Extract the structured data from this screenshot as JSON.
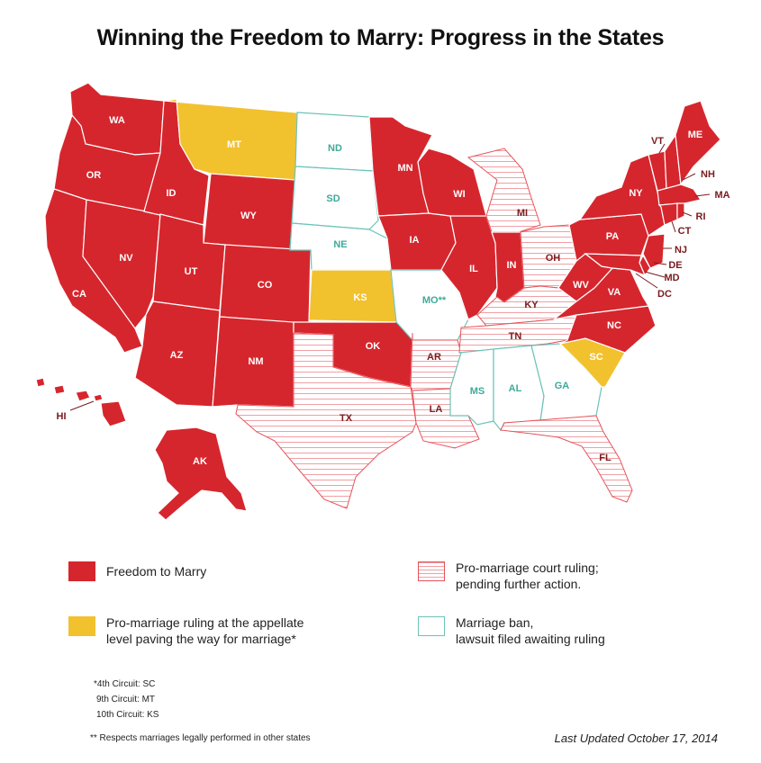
{
  "title": "Winning the Freedom to Marry: Progress in the States",
  "colors": {
    "freedom": "#d6262d",
    "appellate": "#f2c12e",
    "pending_stroke": "#e8525a",
    "ban_stroke": "#6cc3b8"
  },
  "states": {
    "WA": "WA",
    "OR": "OR",
    "CA": "CA",
    "NV": "NV",
    "ID": "ID",
    "MT": "MT",
    "WY": "WY",
    "UT": "UT",
    "CO": "CO",
    "AZ": "AZ",
    "NM": "NM",
    "ND": "ND",
    "SD": "SD",
    "NE": "NE",
    "KS": "KS",
    "OK": "OK",
    "TX": "TX",
    "MN": "MN",
    "IA": "IA",
    "MO": "MO**",
    "AR": "AR",
    "LA": "LA",
    "WI": "WI",
    "IL": "IL",
    "MI": "MI",
    "IN": "IN",
    "OH": "OH",
    "KY": "KY",
    "TN": "TN",
    "MS": "MS",
    "AL": "AL",
    "GA": "GA",
    "FL": "FL",
    "SC": "SC",
    "NC": "NC",
    "VA": "VA",
    "WV": "WV",
    "PA": "PA",
    "NY": "NY",
    "VT": "VT",
    "NH": "NH",
    "ME": "ME",
    "MA": "MA",
    "RI": "RI",
    "CT": "CT",
    "NJ": "NJ",
    "DE": "DE",
    "MD": "MD",
    "DC": "DC",
    "AK": "AK",
    "HI": "HI"
  },
  "legend": {
    "freedom": "Freedom to Marry",
    "appellate_line1": "Pro-marriage ruling at the appellate",
    "appellate_line2": "level paving the way for marriage*",
    "pending_line1": "Pro-marriage court ruling;",
    "pending_line2": "pending further action.",
    "ban_line1": "Marriage ban,",
    "ban_line2": "lawsuit filed awaiting ruling"
  },
  "footnotes": {
    "circuit_4": "*4th Circuit: SC",
    "circuit_9": "9th Circuit: MT",
    "circuit_10": "10th Circuit: KS",
    "respects": "** Respects marriages legally performed in other states"
  },
  "updated": "Last Updated October 17, 2014"
}
